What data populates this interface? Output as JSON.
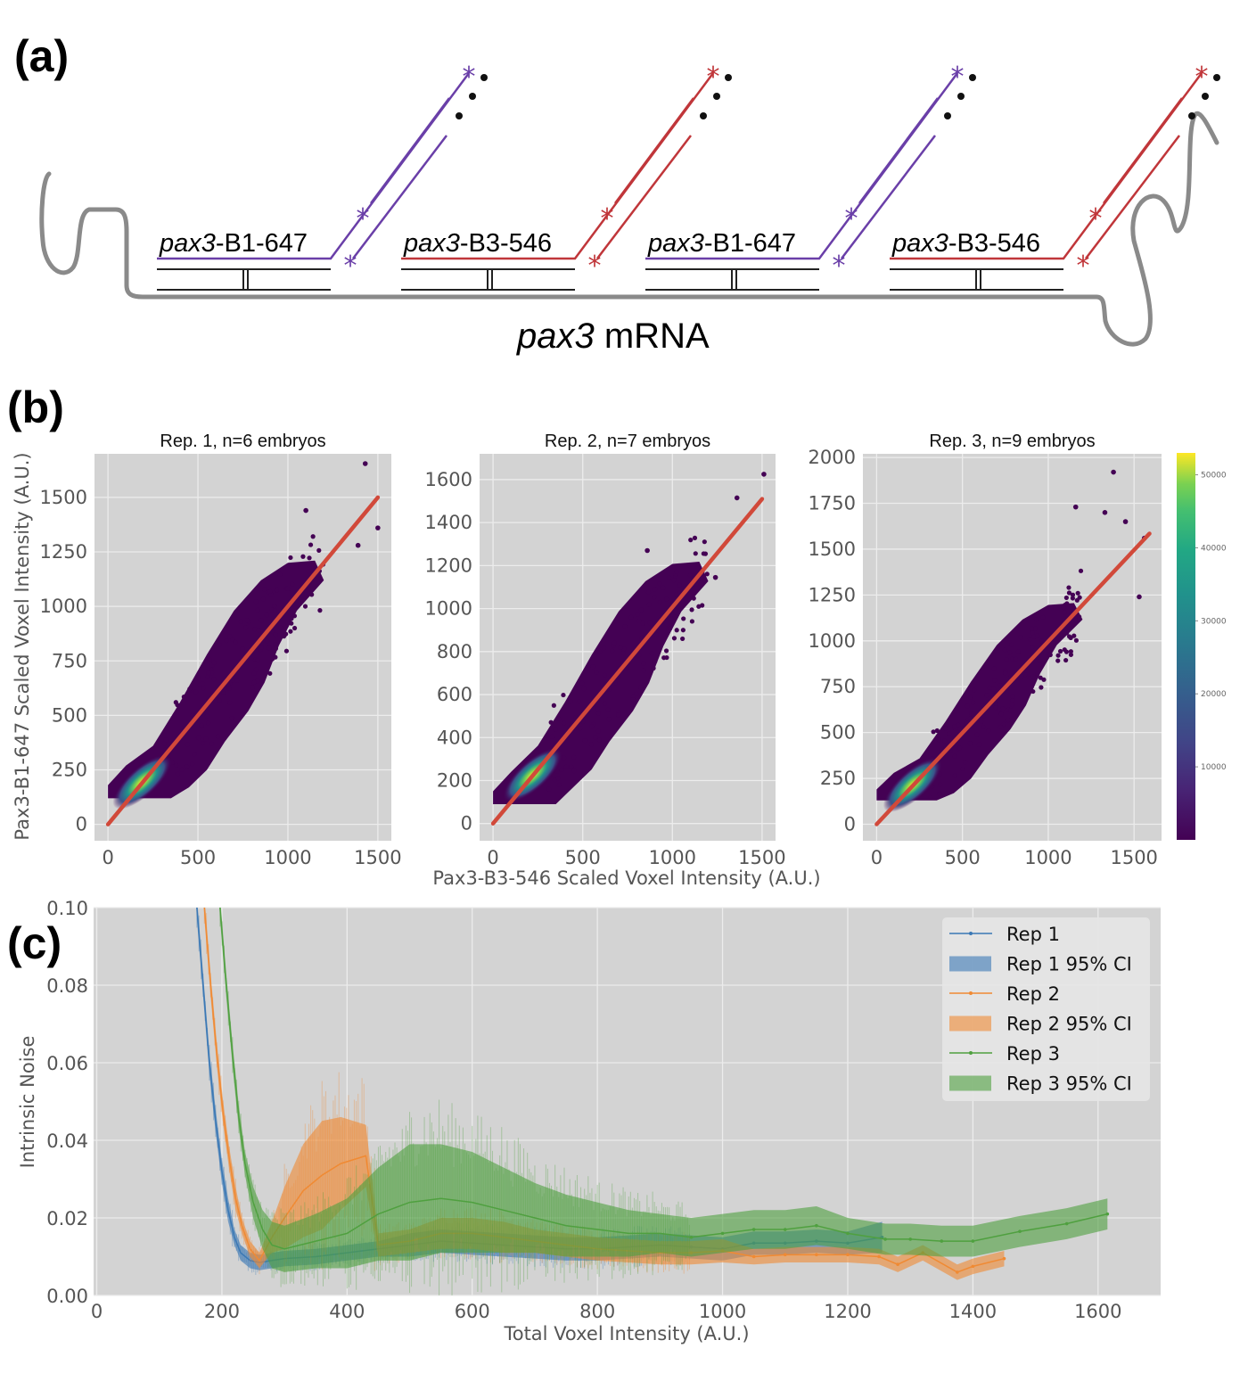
{
  "panels": {
    "a": {
      "label": "(a)",
      "mrna_label_italic": "pax3",
      "mrna_label_rest": " mRNA",
      "probes": [
        {
          "name_italic": "pax3",
          "name_rest": "-B1-647",
          "color": "#6a3fa8"
        },
        {
          "name_italic": "pax3",
          "name_rest": "-B3-546",
          "color": "#c0363a"
        },
        {
          "name_italic": "pax3",
          "name_rest": "-B1-647",
          "color": "#6a3fa8"
        },
        {
          "name_italic": "pax3",
          "name_rest": "-B3-546",
          "color": "#c0363a"
        }
      ],
      "colors": {
        "mrna": "#8a8a8a",
        "probe_body": "#222222",
        "dots": "#111111"
      }
    },
    "b": {
      "label": "(b)"
    },
    "c": {
      "label": "(c)"
    }
  },
  "chart_data": [
    {
      "type": "heatmap",
      "subtype": "hexbin-scatter",
      "title": "Rep. 1, n=6 embryos",
      "ylabel": "Pax3-B1-647 Scaled Voxel Intensity (A.U.)",
      "xlabel": "Pax3-B3-546 Scaled Voxel Intensity (A.U.)",
      "xlim": [
        -75,
        1575
      ],
      "ylim": [
        -75,
        1700
      ],
      "xticks": [
        0,
        500,
        1000,
        1500
      ],
      "yticks": [
        0,
        250,
        500,
        750,
        1000,
        1250,
        1500
      ],
      "fit_line": {
        "x": [
          0,
          1500
        ],
        "y": [
          0,
          1500
        ],
        "color": "#d1493a"
      },
      "density_peak": {
        "x": 170,
        "y": 180
      },
      "cloud_floor_y": 120,
      "outliers": [
        [
          1430,
          1655
        ],
        [
          1500,
          1360
        ],
        [
          1100,
          1440
        ],
        [
          1390,
          1280
        ]
      ],
      "grid": true
    },
    {
      "type": "heatmap",
      "subtype": "hexbin-scatter",
      "title": "Rep. 2, n=7 embryos",
      "xlim": [
        -75,
        1575
      ],
      "ylim": [
        -80,
        1720
      ],
      "xticks": [
        0,
        500,
        1000,
        1500
      ],
      "yticks": [
        0,
        200,
        400,
        600,
        800,
        1000,
        1200,
        1400,
        1600
      ],
      "fit_line": {
        "x": [
          0,
          1500
        ],
        "y": [
          0,
          1510
        ],
        "color": "#d1493a"
      },
      "density_peak": {
        "x": 200,
        "y": 210
      },
      "cloud_floor_y": 90,
      "outliers": [
        [
          1510,
          1625
        ],
        [
          1360,
          1515
        ],
        [
          860,
          1270
        ],
        [
          1240,
          1145
        ]
      ],
      "grid": true
    },
    {
      "type": "heatmap",
      "subtype": "hexbin-scatter",
      "title": "Rep. 3, n=9 embryos",
      "xlim": [
        -80,
        1660
      ],
      "ylim": [
        -90,
        2020
      ],
      "xticks": [
        0,
        500,
        1000,
        1500
      ],
      "yticks": [
        0,
        250,
        500,
        750,
        1000,
        1250,
        1500,
        1750,
        2000
      ],
      "fit_line": {
        "x": [
          0,
          1590
        ],
        "y": [
          0,
          1585
        ],
        "color": "#d1493a"
      },
      "density_peak": {
        "x": 190,
        "y": 200
      },
      "cloud_floor_y": 130,
      "outliers": [
        [
          1380,
          1920
        ],
        [
          1160,
          1730
        ],
        [
          1330,
          1700
        ],
        [
          1450,
          1650
        ],
        [
          1530,
          1240
        ],
        [
          1560,
          1560
        ]
      ],
      "colorbar": {
        "cmap": "viridis",
        "range": [
          0,
          53000
        ],
        "ticks": [
          10000,
          20000,
          30000,
          40000,
          50000
        ]
      },
      "grid": true
    },
    {
      "type": "line",
      "title": "",
      "xlabel": "Total Voxel Intensity (A.U.)",
      "ylabel": "Intrinsic Noise",
      "xlim": [
        -5,
        1700
      ],
      "ylim": [
        0,
        0.1
      ],
      "xticks": [
        0,
        200,
        400,
        600,
        800,
        1000,
        1200,
        1400,
        1600
      ],
      "yticks": [
        0.0,
        0.02,
        0.04,
        0.06,
        0.08,
        0.1
      ],
      "ytick_labels": [
        "0.00",
        "0.02",
        "0.04",
        "0.06",
        "0.08",
        "0.10"
      ],
      "legend_position": "top-right",
      "grid": true,
      "series": [
        {
          "name": "Rep 1",
          "ci_name": "Rep 1 95% CI",
          "color": "#3a78b5",
          "x": [
            160,
            170,
            180,
            190,
            200,
            210,
            220,
            230,
            245,
            260,
            300,
            350,
            400,
            450,
            500,
            550,
            600,
            650,
            700,
            750,
            800,
            850,
            900,
            950,
            1000,
            1050,
            1100,
            1150,
            1200,
            1255
          ],
          "y": [
            0.1,
            0.08,
            0.06,
            0.045,
            0.032,
            0.022,
            0.015,
            0.011,
            0.009,
            0.0085,
            0.0095,
            0.01,
            0.011,
            0.012,
            0.013,
            0.014,
            0.0135,
            0.013,
            0.0125,
            0.012,
            0.012,
            0.0125,
            0.013,
            0.0125,
            0.012,
            0.0135,
            0.0135,
            0.014,
            0.0135,
            0.015
          ],
          "ci_halfwidth": [
            0.003,
            0.003,
            0.003,
            0.003,
            0.003,
            0.003,
            0.002,
            0.002,
            0.002,
            0.002,
            0.002,
            0.002,
            0.002,
            0.002,
            0.003,
            0.003,
            0.003,
            0.003,
            0.003,
            0.003,
            0.003,
            0.003,
            0.003,
            0.003,
            0.003,
            0.003,
            0.003,
            0.003,
            0.003,
            0.004
          ]
        },
        {
          "name": "Rep 2",
          "ci_name": "Rep 2 95% CI",
          "color": "#f08a33",
          "x": [
            172,
            182,
            192,
            202,
            212,
            222,
            232,
            245,
            260,
            280,
            300,
            330,
            360,
            390,
            430,
            450,
            500,
            550,
            600,
            650,
            700,
            750,
            800,
            850,
            900,
            950,
            1000,
            1050,
            1100,
            1150,
            1200,
            1250,
            1280,
            1320,
            1375,
            1400,
            1450
          ],
          "y": [
            0.1,
            0.08,
            0.062,
            0.047,
            0.035,
            0.025,
            0.018,
            0.012,
            0.009,
            0.015,
            0.02,
            0.027,
            0.031,
            0.034,
            0.036,
            0.013,
            0.014,
            0.016,
            0.016,
            0.015,
            0.014,
            0.013,
            0.012,
            0.0115,
            0.011,
            0.011,
            0.0115,
            0.01,
            0.0105,
            0.0105,
            0.0105,
            0.01,
            0.008,
            0.011,
            0.006,
            0.0075,
            0.0095
          ],
          "ci_halfwidth": [
            0.003,
            0.003,
            0.003,
            0.003,
            0.003,
            0.003,
            0.002,
            0.002,
            0.002,
            0.004,
            0.008,
            0.012,
            0.014,
            0.012,
            0.008,
            0.003,
            0.003,
            0.004,
            0.004,
            0.004,
            0.003,
            0.003,
            0.003,
            0.003,
            0.003,
            0.003,
            0.003,
            0.002,
            0.002,
            0.002,
            0.002,
            0.002,
            0.002,
            0.002,
            0.002,
            0.002,
            0.002
          ]
        },
        {
          "name": "Rep 3",
          "ci_name": "Rep 3 95% CI",
          "color": "#4fa03f",
          "x": [
            197,
            207,
            217,
            227,
            237,
            250,
            265,
            280,
            300,
            350,
            400,
            450,
            500,
            550,
            600,
            650,
            700,
            750,
            800,
            850,
            900,
            950,
            1000,
            1050,
            1100,
            1150,
            1200,
            1260,
            1300,
            1350,
            1400,
            1475,
            1550,
            1615
          ],
          "y": [
            0.1,
            0.08,
            0.062,
            0.046,
            0.034,
            0.024,
            0.017,
            0.013,
            0.012,
            0.014,
            0.016,
            0.021,
            0.024,
            0.025,
            0.024,
            0.022,
            0.02,
            0.018,
            0.017,
            0.016,
            0.016,
            0.015,
            0.016,
            0.017,
            0.017,
            0.018,
            0.016,
            0.0145,
            0.0145,
            0.014,
            0.014,
            0.0165,
            0.0185,
            0.021
          ],
          "ci_halfwidth": [
            0.003,
            0.003,
            0.003,
            0.003,
            0.003,
            0.004,
            0.005,
            0.006,
            0.006,
            0.007,
            0.009,
            0.012,
            0.015,
            0.014,
            0.013,
            0.011,
            0.009,
            0.008,
            0.007,
            0.006,
            0.005,
            0.005,
            0.005,
            0.005,
            0.005,
            0.005,
            0.004,
            0.004,
            0.004,
            0.004,
            0.004,
            0.004,
            0.004,
            0.004
          ]
        }
      ]
    }
  ]
}
